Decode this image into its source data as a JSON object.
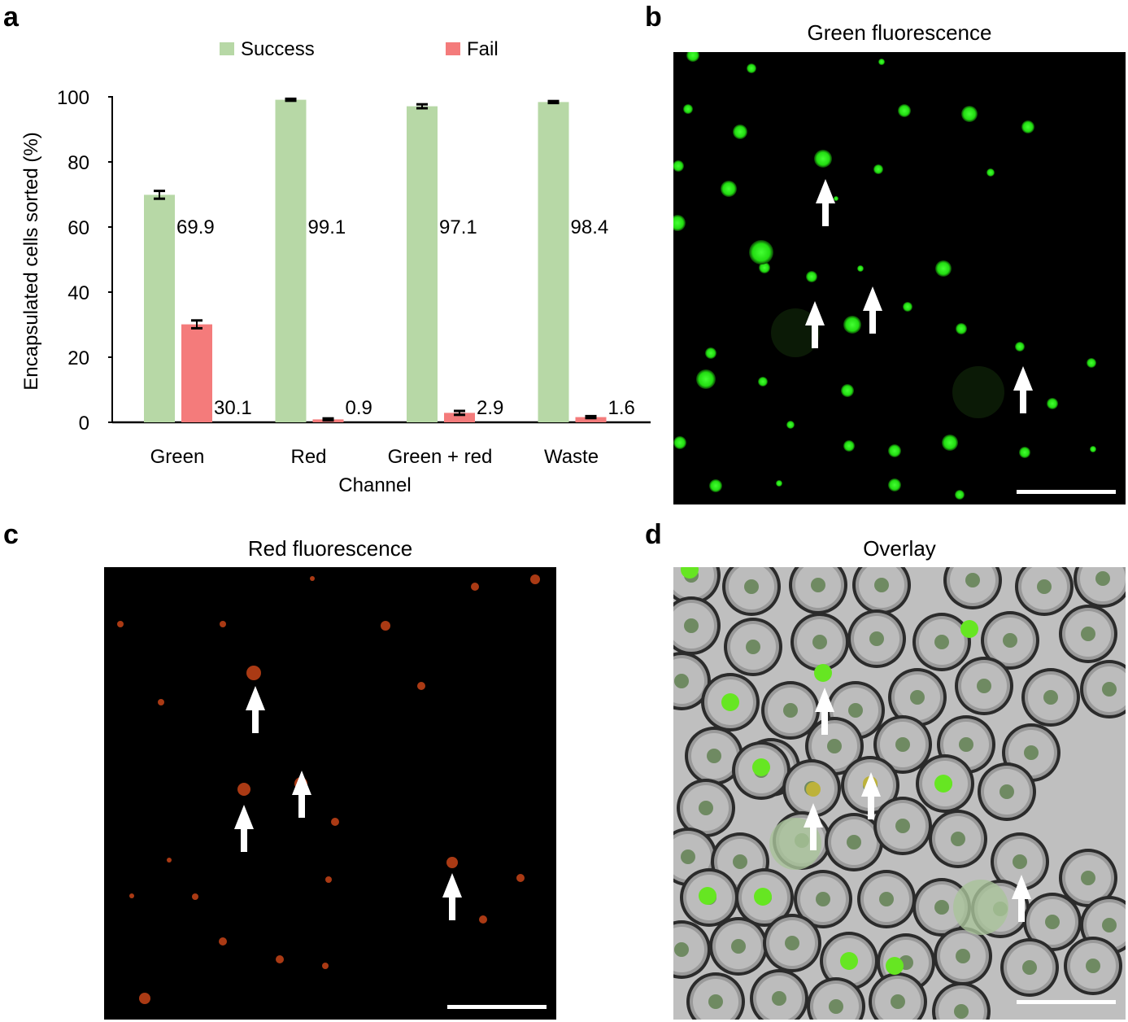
{
  "panels": {
    "a": {
      "letter": "a"
    },
    "b": {
      "letter": "b",
      "title": "Green fluorescence"
    },
    "c": {
      "letter": "c",
      "title": "Red fluorescence"
    },
    "d": {
      "letter": "d",
      "title": "Overlay"
    }
  },
  "colors": {
    "success": "#b7d8a6",
    "fail": "#f47b7b",
    "green_fluor": "#22ee11",
    "red_fluor": "#c84418",
    "overlay_bg": "#bfbfbf",
    "arrow": "#ffffff"
  },
  "chart_data": {
    "type": "bar",
    "categories": [
      "Green",
      "Red",
      "Green + red",
      "Waste"
    ],
    "series": [
      {
        "name": "Success",
        "values": [
          69.9,
          99.1,
          97.1,
          98.4
        ],
        "errors": [
          1.2,
          0.3,
          0.6,
          0.3
        ]
      },
      {
        "name": "Fail",
        "values": [
          30.1,
          0.9,
          2.9,
          1.6
        ],
        "errors": [
          1.2,
          0.3,
          0.6,
          0.3
        ]
      }
    ],
    "data_labels": [
      "69.9",
      "99.1",
      "97.1",
      "98.4",
      "30.1",
      "0.9",
      "2.9",
      "1.6"
    ],
    "xlabel": "Channel",
    "ylabel": "Encapsulated cells sorted (%)",
    "ylim": [
      0,
      100
    ],
    "yticks": [
      0,
      20,
      40,
      60,
      80,
      100
    ],
    "legend_placement": "top",
    "grid": false
  },
  "icons": [
    "arrow-up-icon",
    "scale-bar"
  ]
}
